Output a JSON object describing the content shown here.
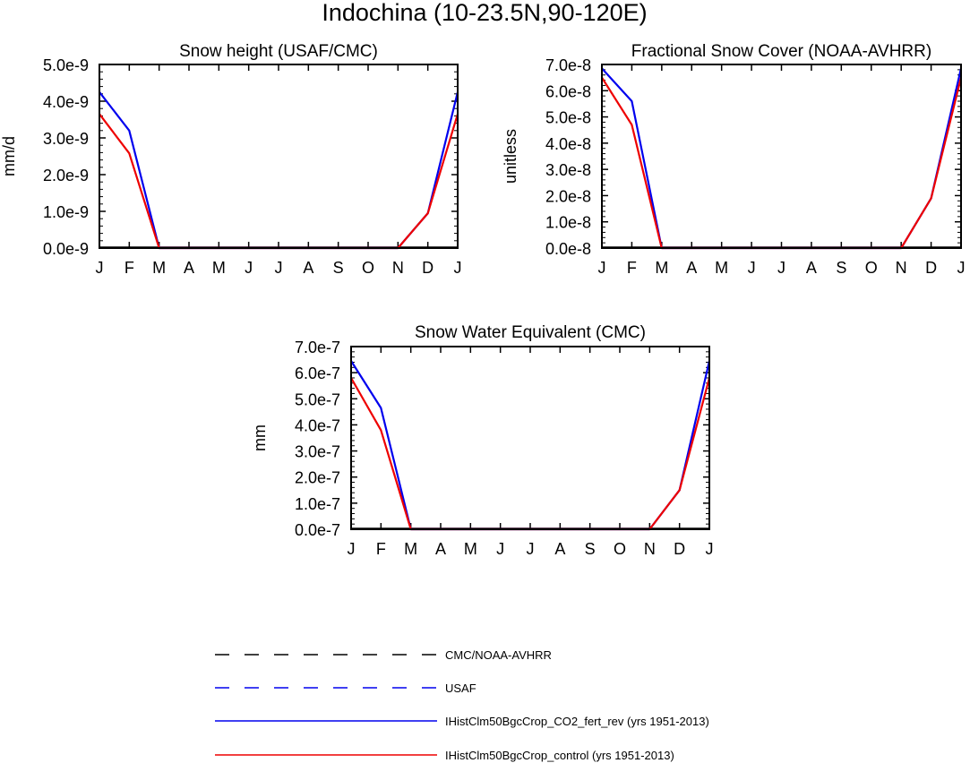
{
  "figure": {
    "title": "Indochina (10-23.5N,90-120E)"
  },
  "months": [
    "J",
    "F",
    "M",
    "A",
    "M",
    "J",
    "J",
    "A",
    "S",
    "O",
    "N",
    "D",
    "J"
  ],
  "colors": {
    "co2_fert_rev": "#0000ee",
    "control": "#ee0000",
    "obs": "#000000",
    "usaf": "#0000ee"
  },
  "chart_data": [
    {
      "type": "line",
      "title": "Snow height (USAF/CMC)",
      "xlabel": "",
      "ylabel": "mm/d",
      "ylim": [
        0,
        5e-09
      ],
      "yticks": [
        "0.0e-9",
        "1.0e-9",
        "2.0e-9",
        "3.0e-9",
        "4.0e-9",
        "5.0e-9"
      ],
      "categories": [
        "J",
        "F",
        "M",
        "A",
        "M",
        "J",
        "J",
        "A",
        "S",
        "O",
        "N",
        "D",
        "J"
      ],
      "series": [
        {
          "name": "IHistClm50BgcCrop_CO2_fert_rev (yrs 1951-2013)",
          "values": [
            4.25e-09,
            3.2e-09,
            0,
            0,
            0,
            0,
            0,
            0,
            0,
            0,
            0,
            9.5e-10,
            4.25e-09
          ]
        },
        {
          "name": "IHistClm50BgcCrop_control (yrs 1951-2013)",
          "values": [
            3.65e-09,
            2.58e-09,
            0,
            0,
            0,
            0,
            0,
            0,
            0,
            0,
            0,
            9.5e-10,
            3.65e-09
          ]
        }
      ]
    },
    {
      "type": "line",
      "title": "Fractional Snow Cover (NOAA-AVHRR)",
      "xlabel": "",
      "ylabel": "unitless",
      "ylim": [
        0,
        7e-08
      ],
      "yticks": [
        "0.0e-8",
        "1.0e-8",
        "2.0e-8",
        "3.0e-8",
        "4.0e-8",
        "5.0e-8",
        "6.0e-8",
        "7.0e-8"
      ],
      "categories": [
        "J",
        "F",
        "M",
        "A",
        "M",
        "J",
        "J",
        "A",
        "S",
        "O",
        "N",
        "D",
        "J"
      ],
      "series": [
        {
          "name": "IHistClm50BgcCrop_CO2_fert_rev (yrs 1951-2013)",
          "values": [
            6.85e-08,
            5.6e-08,
            0,
            0,
            0,
            0,
            0,
            0,
            0,
            0,
            0,
            1.9e-08,
            6.85e-08
          ]
        },
        {
          "name": "IHistClm50BgcCrop_control (yrs 1951-2013)",
          "values": [
            6.5e-08,
            4.7e-08,
            0,
            0,
            0,
            0,
            0,
            0,
            0,
            0,
            0,
            1.9e-08,
            6.5e-08
          ]
        }
      ]
    },
    {
      "type": "line",
      "title": "Snow Water Equivalent (CMC)",
      "xlabel": "",
      "ylabel": "mm",
      "ylim": [
        0,
        7e-07
      ],
      "yticks": [
        "0.0e-7",
        "1.0e-7",
        "2.0e-7",
        "3.0e-7",
        "4.0e-7",
        "5.0e-7",
        "6.0e-7",
        "7.0e-7"
      ],
      "categories": [
        "J",
        "F",
        "M",
        "A",
        "M",
        "J",
        "J",
        "A",
        "S",
        "O",
        "N",
        "D",
        "J"
      ],
      "series": [
        {
          "name": "IHistClm50BgcCrop_CO2_fert_rev (yrs 1951-2013)",
          "values": [
            6.45e-07,
            4.65e-07,
            0,
            0,
            0,
            0,
            0,
            0,
            0,
            0,
            0,
            1.5e-07,
            6.45e-07
          ]
        },
        {
          "name": "IHistClm50BgcCrop_control (yrs 1951-2013)",
          "values": [
            5.8e-07,
            3.8e-07,
            0,
            0,
            0,
            0,
            0,
            0,
            0,
            0,
            0,
            1.5e-07,
            5.8e-07
          ]
        }
      ]
    }
  ],
  "legend": [
    {
      "label": "CMC/NOAA-AVHRR",
      "style": "dashed",
      "color": "#000000"
    },
    {
      "label": "USAF",
      "style": "dashed",
      "color": "#0000ee"
    },
    {
      "label": "IHistClm50BgcCrop_CO2_fert_rev (yrs 1951-2013)",
      "style": "solid",
      "color": "#0000ee"
    },
    {
      "label": "IHistClm50BgcCrop_control (yrs 1951-2013)",
      "style": "solid",
      "color": "#ee0000"
    }
  ]
}
